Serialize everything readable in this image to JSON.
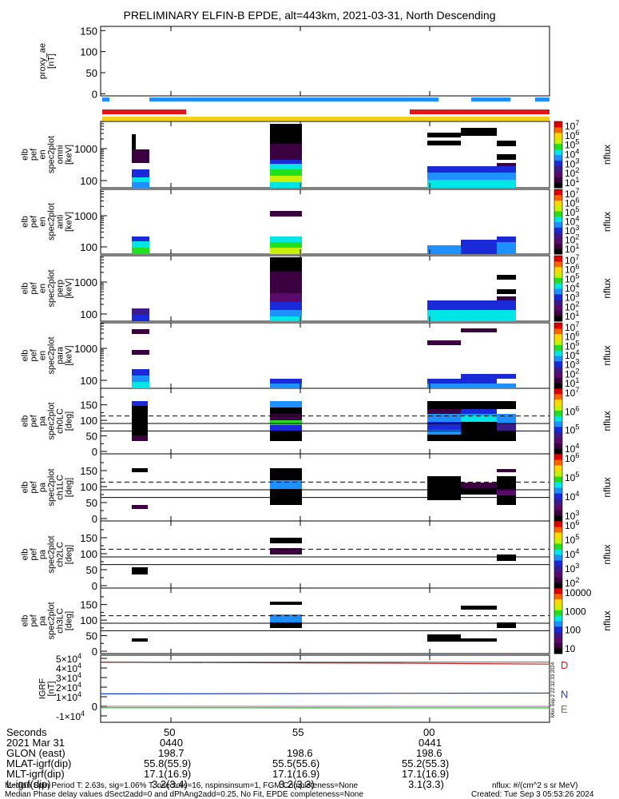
{
  "title": "PRELIMINARY ELFIN-B EPDE, alt=443km, 2021-03-31, North Descending",
  "chart_data": [
    {
      "type": "line",
      "id": "proxy_ae",
      "ylabel": "proxy_ae\n[nT]",
      "ylim": [
        -5,
        160
      ],
      "yticks": [
        "150",
        "100",
        "50",
        "0"
      ],
      "values": []
    },
    {
      "type": "heatmap",
      "id": "pef_en_omni",
      "ylabel": "elb\npef\nen\nspec2plot\nomni\n[keV]",
      "yscale": "log",
      "yticks": [
        "1000",
        "100"
      ],
      "zlabel": "nflux",
      "zticks": [
        "10^7",
        "10^6",
        "10^5",
        "10^4",
        "10^3",
        "10^2",
        "10^1"
      ]
    },
    {
      "type": "heatmap",
      "id": "pef_en_anti",
      "ylabel": "elb\npef\nen\nspec2plot\nanti\n[keV]",
      "yscale": "log",
      "yticks": [
        "1000",
        "100"
      ],
      "zlabel": "nflux",
      "zticks": [
        "10^7",
        "10^6",
        "10^5",
        "10^4",
        "10^3",
        "10^2",
        "10^1"
      ]
    },
    {
      "type": "heatmap",
      "id": "pef_en_perp",
      "ylabel": "elb\npef\nen\nspec2plot\nperp\n[keV]",
      "yscale": "log",
      "yticks": [
        "1000",
        "100"
      ],
      "zlabel": "nflux",
      "zticks": [
        "10^7",
        "10^6",
        "10^5",
        "10^4",
        "10^3",
        "10^2",
        "10^1"
      ]
    },
    {
      "type": "heatmap",
      "id": "pef_en_para",
      "ylabel": "elb\npef\nen\nspec2plot\npara\n[keV]",
      "yscale": "log",
      "yticks": [
        "1000",
        "100"
      ],
      "zlabel": "nflux",
      "zticks": [
        "10^7",
        "10^6",
        "10^5",
        "10^4",
        "10^3",
        "10^2",
        "10^1"
      ]
    },
    {
      "type": "heatmap",
      "id": "pef_pa_ch0LC",
      "ylabel": "elb\npef\npa\nspec2plot\nch0LC\n[deg]",
      "ylim": [
        0,
        180
      ],
      "yticks": [
        "150",
        "100",
        "50",
        "0"
      ],
      "zlabel": "nflux",
      "zticks": [
        "10^7",
        "10^6",
        "10^5",
        "10^4"
      ]
    },
    {
      "type": "heatmap",
      "id": "pef_pa_ch1LC",
      "ylabel": "elb\npef\npa\nspec2plot\nch1LC\n[deg]",
      "ylim": [
        0,
        180
      ],
      "yticks": [
        "150",
        "100",
        "50",
        "0"
      ],
      "zlabel": "nflux",
      "zticks": [
        "10^6",
        "10^5",
        "10^4",
        "10^3"
      ]
    },
    {
      "type": "heatmap",
      "id": "pef_pa_ch2LC",
      "ylabel": "elb\npef\npa\nspec2plot\nch2LC\n[deg]",
      "ylim": [
        0,
        180
      ],
      "yticks": [
        "150",
        "100",
        "50",
        "0"
      ],
      "zlabel": "nflux",
      "zticks": [
        "10^6",
        "10^5",
        "10^4",
        "10^3",
        "10^2"
      ]
    },
    {
      "type": "heatmap",
      "id": "pef_pa_ch3LC",
      "ylabel": "elb\npef\npa\nspec2plot\nch3LC\n[deg]",
      "ylim": [
        0,
        180
      ],
      "yticks": [
        "150",
        "100",
        "50",
        "0"
      ],
      "zlabel": "nflux",
      "zticks": [
        "10000",
        "1000",
        "100",
        "10"
      ]
    },
    {
      "type": "line",
      "id": "igrf",
      "ylabel": "IGRF\n[nT]",
      "ylim": [
        -10000,
        50000
      ],
      "yticks": [
        "5×10^4",
        "4×10^4",
        "3×10^4",
        "2×10^4",
        "1×10^4",
        "0",
        "-1×10^4"
      ],
      "series": [
        {
          "name": "D",
          "values": [
            46000,
            45500,
            45000,
            44000
          ]
        },
        {
          "name": "N",
          "values": [
            13000,
            13200,
            13600,
            13800
          ]
        },
        {
          "name": "E",
          "values": [
            -1500,
            -1500,
            -1600,
            -1600
          ]
        }
      ]
    }
  ],
  "xaxis": {
    "rows": [
      {
        "label": "Seconds",
        "values": [
          "50",
          "55",
          "00"
        ]
      },
      {
        "label": "2021 Mar 31",
        "values": [
          "0440",
          "",
          "0441"
        ]
      },
      {
        "label": "GLON (east)",
        "values": [
          "198.7",
          "198.6",
          "198.6"
        ]
      },
      {
        "label": "MLAT-igrf(dip)",
        "values": [
          "55.8(55.9)",
          "55.5(55.6)",
          "55.2(55.3)"
        ]
      },
      {
        "label": "MLT-igrf(dip)",
        "values": [
          "17.1(16.9)",
          "17.1(16.9)",
          "17.1(16.9)"
        ]
      },
      {
        "label": "L-igrf(dip)",
        "values": [
          "3.2(3.4)",
          "3.2(3.3)",
          "3.1(3.3)"
        ]
      }
    ]
  },
  "footer": {
    "line1": "Median Spin Period T: 2.63s, sig=1.06% T, nsectors=16, nspinsinsum=1, FGM Completeness=None",
    "line2": "Median Phase delay values dSect2add=0 and dPhAng2add=0.25, No Fit, EPDE completeness=None",
    "units": "nflux: #/(cm^2 s sr MeV)",
    "created": "Created: Tue Sep  3 05:53:26 2024",
    "side": "Mon Sep  2 22:32:33 2024"
  },
  "colors": {
    "blue_bar": "#1e90ff",
    "red_bar": "#e8141c",
    "yellow_bar": "#f0d21e",
    "D": "#c81e1e",
    "N": "#1e3cc8",
    "E": "#1eb41e"
  }
}
